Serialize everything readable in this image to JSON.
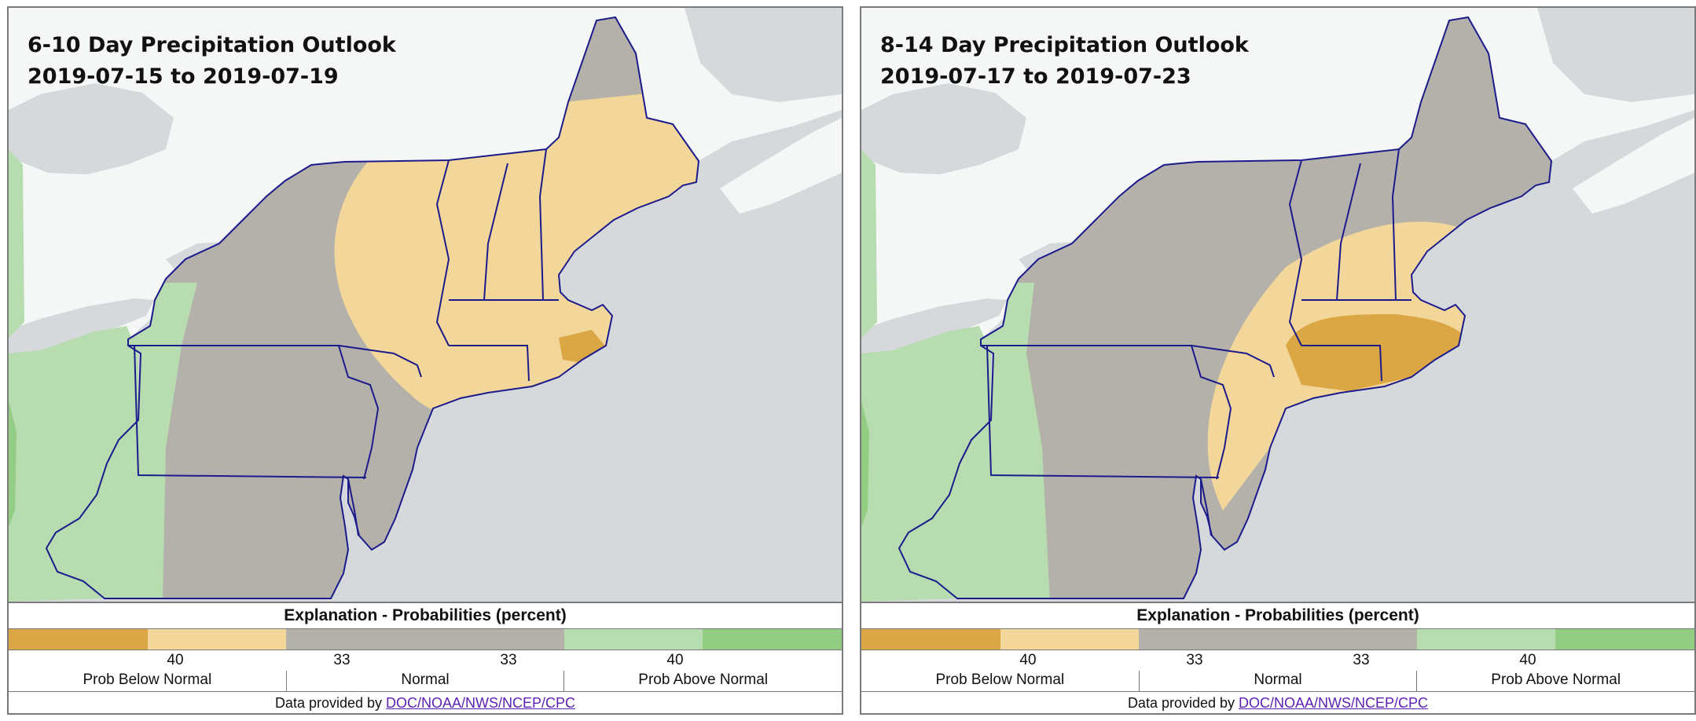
{
  "maps": [
    {
      "title": "6-10 Day Precipitation Outlook",
      "date_range": "2019-07-15 to 2019-07-19",
      "legend": {
        "heading": "Explanation - Probabilities (percent)",
        "ticks": [
          "40",
          "33",
          "33",
          "40"
        ],
        "categories": [
          "Prob Below Normal",
          "Normal",
          "Prob Above Normal"
        ],
        "credit_prefix": "Data provided by ",
        "credit_link": "DOC/NOAA/NWS/NCEP/CPC"
      },
      "regions": {
        "below_normal_33_40": "New England east of the Hudson and Lake Champlain: VT, NH, ME, MA, CT, RI, Long Island",
        "below_normal_40_50": "Cape Cod",
        "normal": "New York, Pennsylvania, New Jersey, Maryland, Delaware, eastern West Virginia",
        "above_normal_33_40": "Western Pennsylvania, West Virginia, Ohio"
      }
    },
    {
      "title": "8-14 Day Precipitation Outlook",
      "date_range": "2019-07-17 to 2019-07-23",
      "legend": {
        "heading": "Explanation - Probabilities (percent)",
        "ticks": [
          "40",
          "33",
          "33",
          "40"
        ],
        "categories": [
          "Prob Below Normal",
          "Normal",
          "Prob Above Normal"
        ],
        "credit_prefix": "Data provided by ",
        "credit_link": "DOC/NOAA/NWS/NCEP/CPC"
      },
      "regions": {
        "below_normal_33_40": "Southern New England, New York City area, New Jersey",
        "below_normal_40_50": "Connecticut, Rhode Island, southeastern Massachusetts, eastern Long Island",
        "normal": "New York, Pennsylvania, Vermont, New Hampshire, Maine, Maryland, Delaware",
        "above_normal_33_40": "Western Pennsylvania, West Virginia, Ohio"
      }
    }
  ],
  "colors": {
    "below_40_50": "#dba644",
    "below_33_40": "#f3d699",
    "normal": "#b4b1aa",
    "above_33_40": "#b6dcb0",
    "above_40_50": "#93cc83",
    "land_outside": "#f5f6f6",
    "water": "#d6d9dc",
    "state_border": "#1b1b8c"
  }
}
